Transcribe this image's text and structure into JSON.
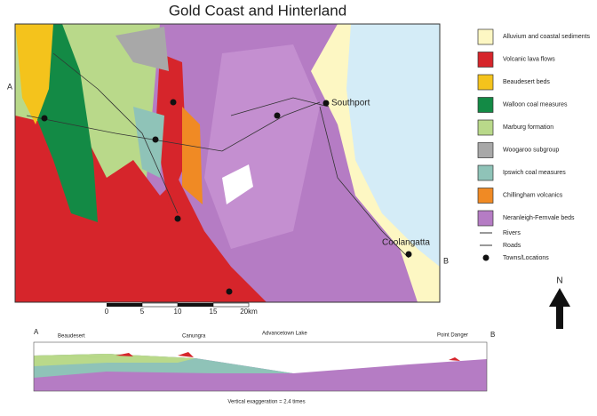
{
  "header": {
    "title": "Gold Coast and Hinterland"
  },
  "map": {
    "section_start": "A",
    "section_end": "B",
    "towns": [
      "Southport",
      "Coolangatta"
    ],
    "north": "N",
    "scale": [
      "0",
      "5",
      "10",
      "15",
      "20km"
    ]
  },
  "legend": {
    "items": [
      {
        "label": "Alluvium and coastal sediments",
        "color": "#fdf7c3"
      },
      {
        "label": "Volcanic lava flows",
        "color": "#d6252b"
      },
      {
        "label": "Beaudesert beds",
        "color": "#f4c31c"
      },
      {
        "label": "Walloon coal measures",
        "color": "#138a45"
      },
      {
        "label": "Marburg formation",
        "color": "#b9d98a"
      },
      {
        "label": "Woogaroo subgroup",
        "color": "#a8a8a8"
      },
      {
        "label": "Ipswich coal measures",
        "color": "#8fc3b8"
      },
      {
        "label": "Chillingham volcanics",
        "color": "#f08a24"
      },
      {
        "label": "Neranleigh-Fernvale beds",
        "color": "#b57cc4"
      }
    ],
    "symbols": [
      "Rivers",
      "Roads",
      "Towns/Locations"
    ]
  },
  "section": {
    "start": "A",
    "end": "B",
    "places": [
      "Beaudesert",
      "Canungra",
      "Advancetown Lake",
      "Point Danger"
    ],
    "note": "Vertical exaggeration = 2.4 times"
  }
}
